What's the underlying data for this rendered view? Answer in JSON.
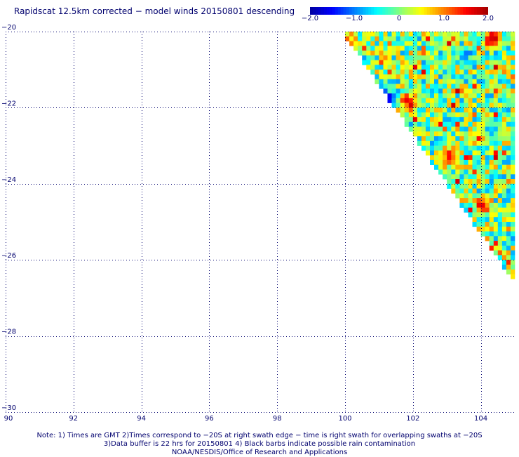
{
  "title": "Rapidscat 12.5km corrected − model winds 20150801 descending",
  "colorbar": {
    "tick_labels": [
      "−2.0",
      "−1.0",
      "0",
      "1.0",
      "2.0"
    ],
    "tick_values": [
      -2.0,
      -1.0,
      0,
      1.0,
      2.0
    ],
    "range": [
      -2.0,
      2.0
    ],
    "colors": [
      "#0000a0",
      "#0000ff",
      "#0080ff",
      "#00ffff",
      "#80ff80",
      "#ffff00",
      "#ff8000",
      "#ff0000",
      "#a00000"
    ]
  },
  "map": {
    "lon_range": [
      90,
      105
    ],
    "lat_range": [
      -30,
      -20
    ],
    "lon_ticks": [
      90,
      92,
      94,
      96,
      98,
      100,
      102,
      104
    ],
    "lon_tick_labels": [
      "90",
      "92",
      "94",
      "96",
      "98",
      "100",
      "102",
      "104"
    ],
    "lat_ticks": [
      -20,
      -22,
      -24,
      -26,
      -28,
      -30
    ],
    "lat_tick_labels": [
      "−20",
      "−22",
      "−24",
      "−26",
      "−28",
      "−30"
    ],
    "gridlines": true,
    "swath": {
      "type": "heatmap",
      "cell_deg": 0.125,
      "edge": [
        [
          99.9,
          -20.0
        ],
        [
          104.9,
          -26.5
        ]
      ],
      "value_range": [
        -2.0,
        2.0
      ],
      "hotspots": [
        {
          "lon": 101.2,
          "lat": -21.7,
          "value": -2.0
        },
        {
          "lon": 101.8,
          "lat": -21.8,
          "value": 1.8
        },
        {
          "lon": 103.0,
          "lat": -23.2,
          "value": 1.5
        },
        {
          "lon": 104.0,
          "lat": -24.5,
          "value": 1.8
        },
        {
          "lon": 104.3,
          "lat": -20.1,
          "value": 2.0
        },
        {
          "lon": 103.5,
          "lat": -20.6,
          "value": -1.2
        },
        {
          "lon": 104.3,
          "lat": -22.5,
          "value": -0.9
        },
        {
          "lon": 100.1,
          "lat": -20.3,
          "value": 1.5
        }
      ]
    }
  },
  "notes": [
    "Note: 1) Times are GMT 2)Times correspond to −20S at right swath edge − time is right swath for overlapping swaths at −20S",
    "3)Data buffer is 22 hrs for 20150801 4) Black barbs indicate possible rain contamination",
    "NOAA/NESDIS/Office of Research and Applications"
  ]
}
